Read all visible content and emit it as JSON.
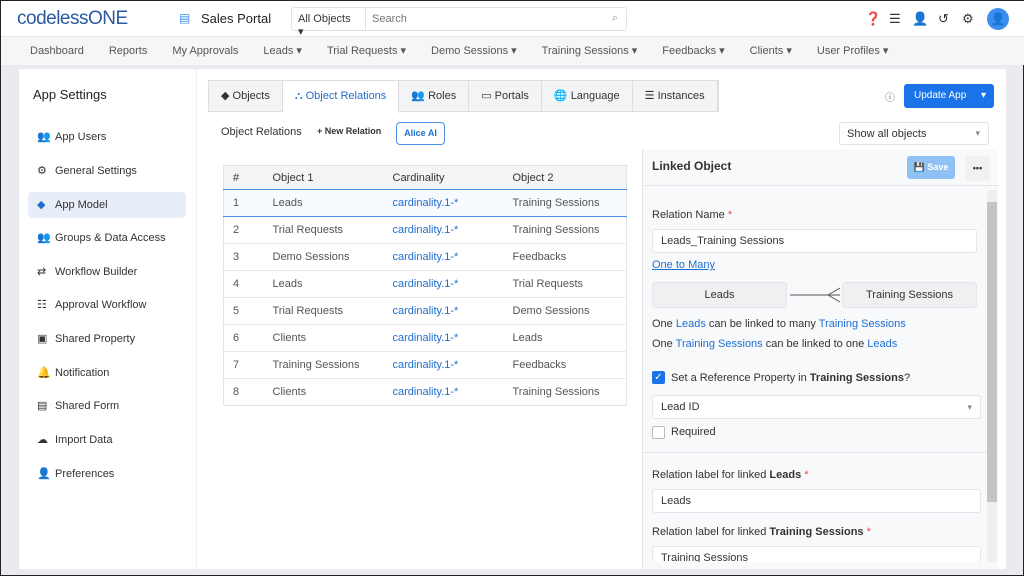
{
  "header": {
    "logo": "codelessONE",
    "portal": "Sales Portal",
    "search_scope": "All Objects",
    "search_placeholder": "Search"
  },
  "nav": [
    "Dashboard",
    "Reports",
    "My Approvals",
    "Leads ▾",
    "Trial Requests ▾",
    "Demo Sessions ▾",
    "Training Sessions ▾",
    "Feedbacks ▾",
    "Clients ▾",
    "User Profiles ▾"
  ],
  "sidebar": {
    "title": "App Settings",
    "items": [
      {
        "label": "App Users",
        "icon": "users-icon"
      },
      {
        "label": "General Settings",
        "icon": "gear-icon"
      },
      {
        "label": "App Model",
        "icon": "cube-icon"
      },
      {
        "label": "Groups & Data Access",
        "icon": "group-icon"
      },
      {
        "label": "Workflow Builder",
        "icon": "arrows-icon"
      },
      {
        "label": "Approval Workflow",
        "icon": "checklist-icon"
      },
      {
        "label": "Shared Property",
        "icon": "box-icon"
      },
      {
        "label": "Notification",
        "icon": "bell-icon"
      },
      {
        "label": "Shared Form",
        "icon": "form-icon"
      },
      {
        "label": "Import Data",
        "icon": "cloud-upload-icon"
      },
      {
        "label": "Preferences",
        "icon": "user-gear-icon"
      }
    ],
    "active": "App Model"
  },
  "tabs": [
    "Objects",
    "Object Relations",
    "Roles",
    "Portals",
    "Language",
    "Instances"
  ],
  "active_tab": "Object Relations",
  "update_app": "Update App",
  "toolbar": {
    "title": "Object Relations",
    "new_relation": "+ New Relation",
    "alice": "Alice AI",
    "filter": "Show all objects"
  },
  "table": {
    "headers": [
      "#",
      "Object 1",
      "Cardinality",
      "Object 2"
    ],
    "rows": [
      [
        "1",
        "Leads",
        "cardinality.1-*",
        "Training Sessions"
      ],
      [
        "2",
        "Trial Requests",
        "cardinality.1-*",
        "Training Sessions"
      ],
      [
        "3",
        "Demo Sessions",
        "cardinality.1-*",
        "Feedbacks"
      ],
      [
        "4",
        "Leads",
        "cardinality.1-*",
        "Trial Requests"
      ],
      [
        "5",
        "Trial Requests",
        "cardinality.1-*",
        "Demo Sessions"
      ],
      [
        "6",
        "Clients",
        "cardinality.1-*",
        "Leads"
      ],
      [
        "7",
        "Training Sessions",
        "cardinality.1-*",
        "Feedbacks"
      ],
      [
        "8",
        "Clients",
        "cardinality.1-*",
        "Training Sessions"
      ]
    ]
  },
  "panel": {
    "title": "Linked Object",
    "save": "Save",
    "more": "•••",
    "relation_name_label": "Relation Name",
    "relation_name": "Leads_Training Sessions",
    "type_link": "One to Many",
    "left": "Leads",
    "right": "Training Sessions",
    "desc1": [
      "One ",
      "Leads",
      " can be linked to many ",
      "Training Sessions"
    ],
    "desc2": [
      "One ",
      "Training Sessions",
      " can be linked to one ",
      "Leads"
    ],
    "ref_check": [
      "Set a Reference Property in ",
      "Training Sessions",
      "?"
    ],
    "ref_checked": true,
    "ref_select": "Lead ID",
    "required": "Required",
    "label1": [
      "Relation label for linked ",
      "Leads"
    ],
    "label1_value": "Leads",
    "label2": [
      "Relation label for linked ",
      "Training Sessions"
    ],
    "label2_value": "Training Sessions"
  }
}
